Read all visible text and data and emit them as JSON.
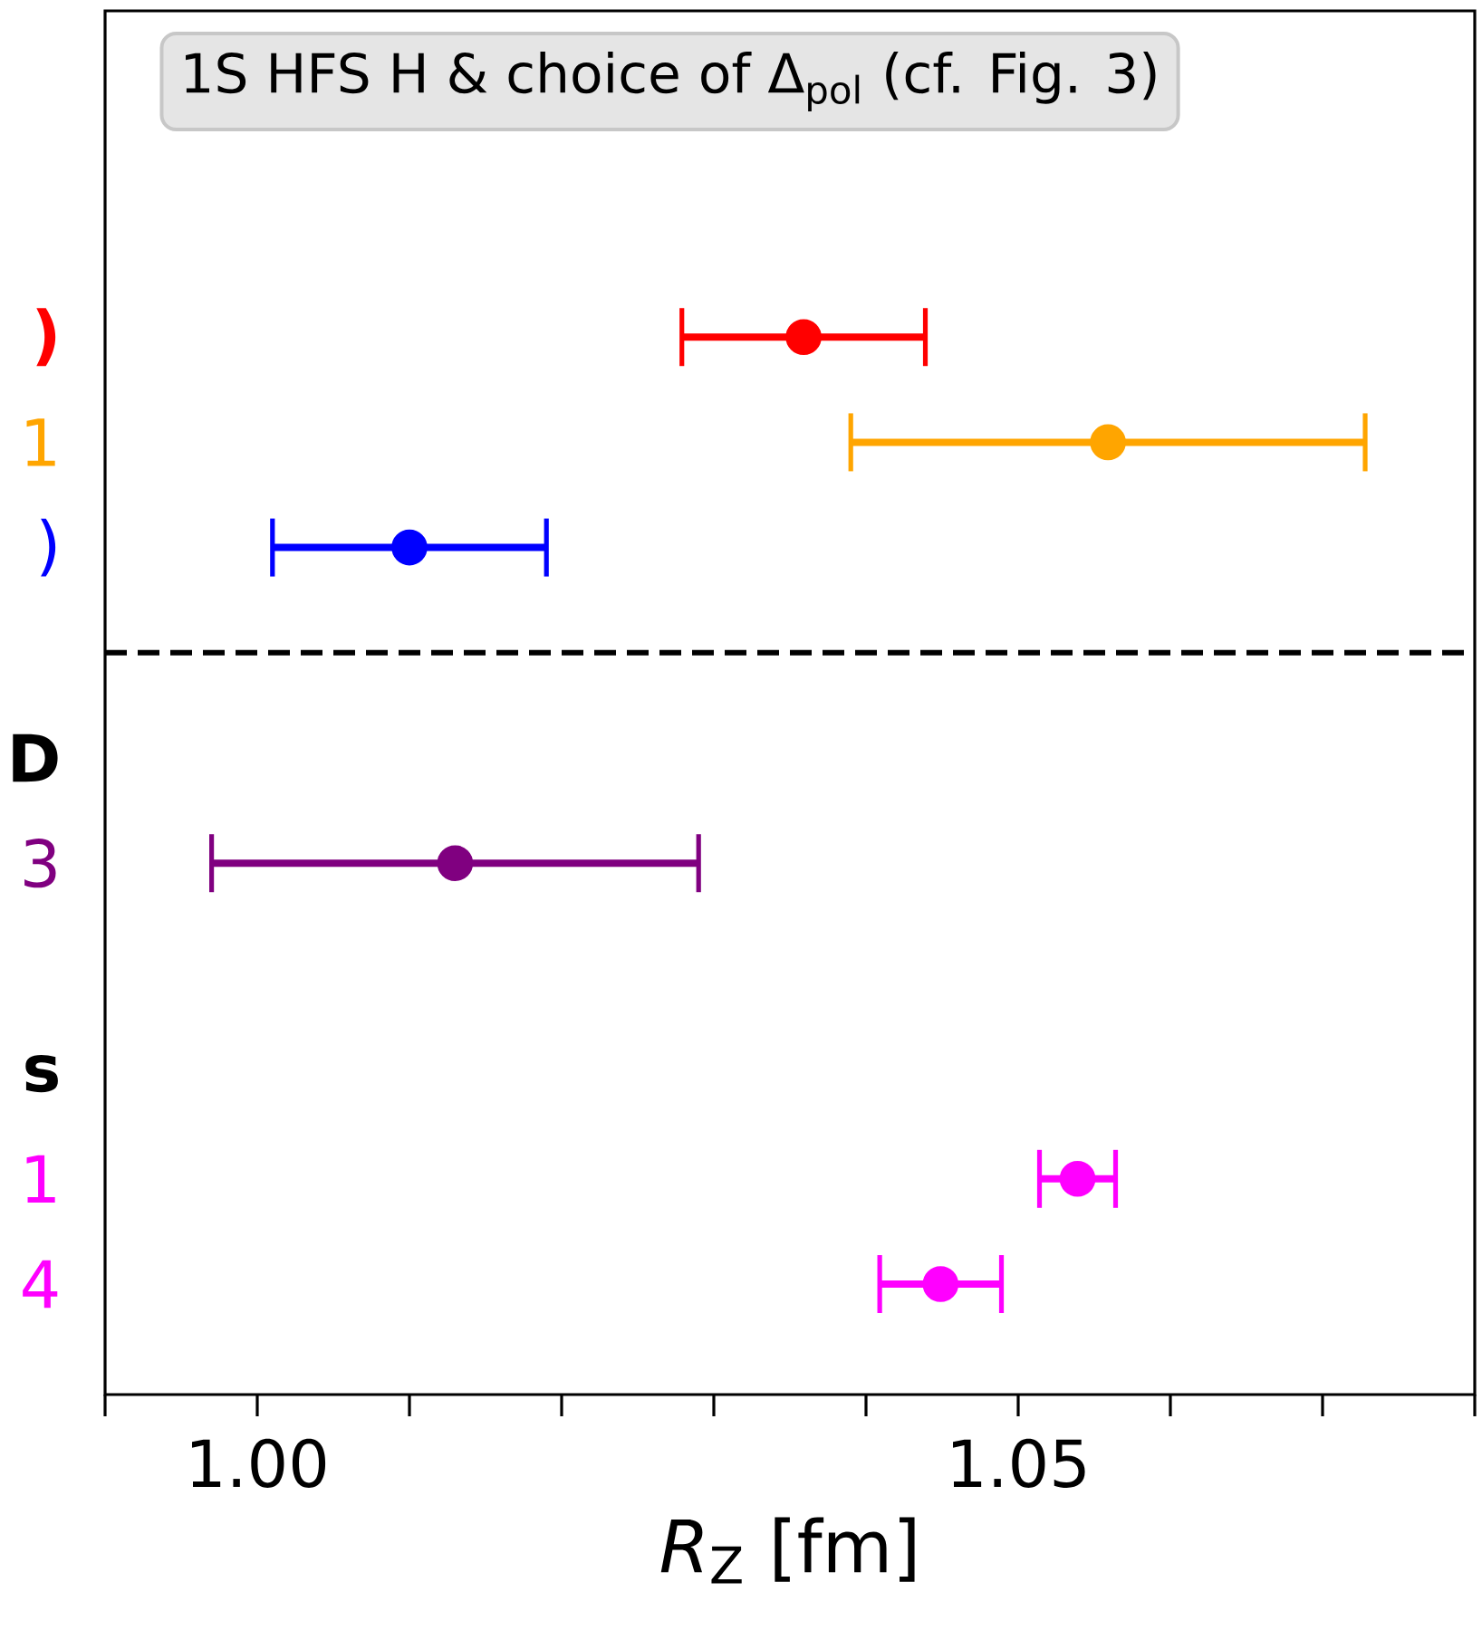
{
  "chart_data": {
    "type": "scatter",
    "orientation": "horizontal",
    "marker": "circle",
    "categories": [
      null,
      null,
      "**)**",
      "1",
      ")",
      null,
      "**D**",
      "3",
      null,
      "**s**",
      "1",
      "4"
    ],
    "xlabel": "*R*$_{Z}$ [fm]",
    "xlim": [
      0.99,
      1.08
    ],
    "xticks": [
      {
        "value": 0.99,
        "label": null
      },
      {
        "value": 1.0,
        "label": "1.00"
      },
      {
        "value": 1.01,
        "label": null
      },
      {
        "value": 1.02,
        "label": null
      },
      {
        "value": 1.03,
        "label": null
      },
      {
        "value": 1.04,
        "label": null
      },
      {
        "value": 1.05,
        "label": "1.05"
      },
      {
        "value": 1.06,
        "label": null
      },
      {
        "value": 1.07,
        "label": null
      },
      {
        "value": 1.08,
        "label": null
      }
    ],
    "annotations": [
      "1S HFS H & choice of Δ$_{pol}$ (cf. Fig. 3)"
    ],
    "series": [
      {
        "color": "#ff0000",
        "values": [
          null,
          null,
          1.0359,
          null,
          null,
          null,
          null,
          null,
          null,
          null,
          null,
          null
        ],
        "errors": [
          null,
          null,
          0.008,
          null,
          null,
          null,
          null,
          null,
          null,
          null,
          null,
          null
        ]
      },
      {
        "color": "#ffa500",
        "values": [
          null,
          null,
          null,
          1.0559,
          null,
          null,
          null,
          null,
          null,
          null,
          null,
          null
        ],
        "errors": [
          null,
          null,
          null,
          0.0169,
          null,
          null,
          null,
          null,
          null,
          null,
          null,
          null
        ]
      },
      {
        "color": "#0000ff",
        "values": [
          null,
          null,
          null,
          null,
          1.01,
          null,
          null,
          null,
          null,
          null,
          null,
          null
        ],
        "errors": [
          null,
          null,
          null,
          null,
          0.009,
          null,
          null,
          null,
          null,
          null,
          null,
          null
        ]
      },
      {
        "color": "#800080",
        "values": [
          null,
          null,
          null,
          null,
          null,
          null,
          null,
          1.013,
          null,
          null,
          null,
          null
        ],
        "errors": [
          null,
          null,
          null,
          null,
          null,
          null,
          null,
          0.016,
          null,
          null,
          null,
          null
        ]
      },
      {
        "color": "#ff00ff",
        "values": [
          null,
          null,
          null,
          null,
          null,
          null,
          null,
          null,
          null,
          null,
          1.0539,
          1.0449
        ],
        "errors": [
          null,
          null,
          null,
          null,
          null,
          null,
          null,
          null,
          null,
          null,
          0.0025,
          0.004
        ]
      }
    ]
  }
}
